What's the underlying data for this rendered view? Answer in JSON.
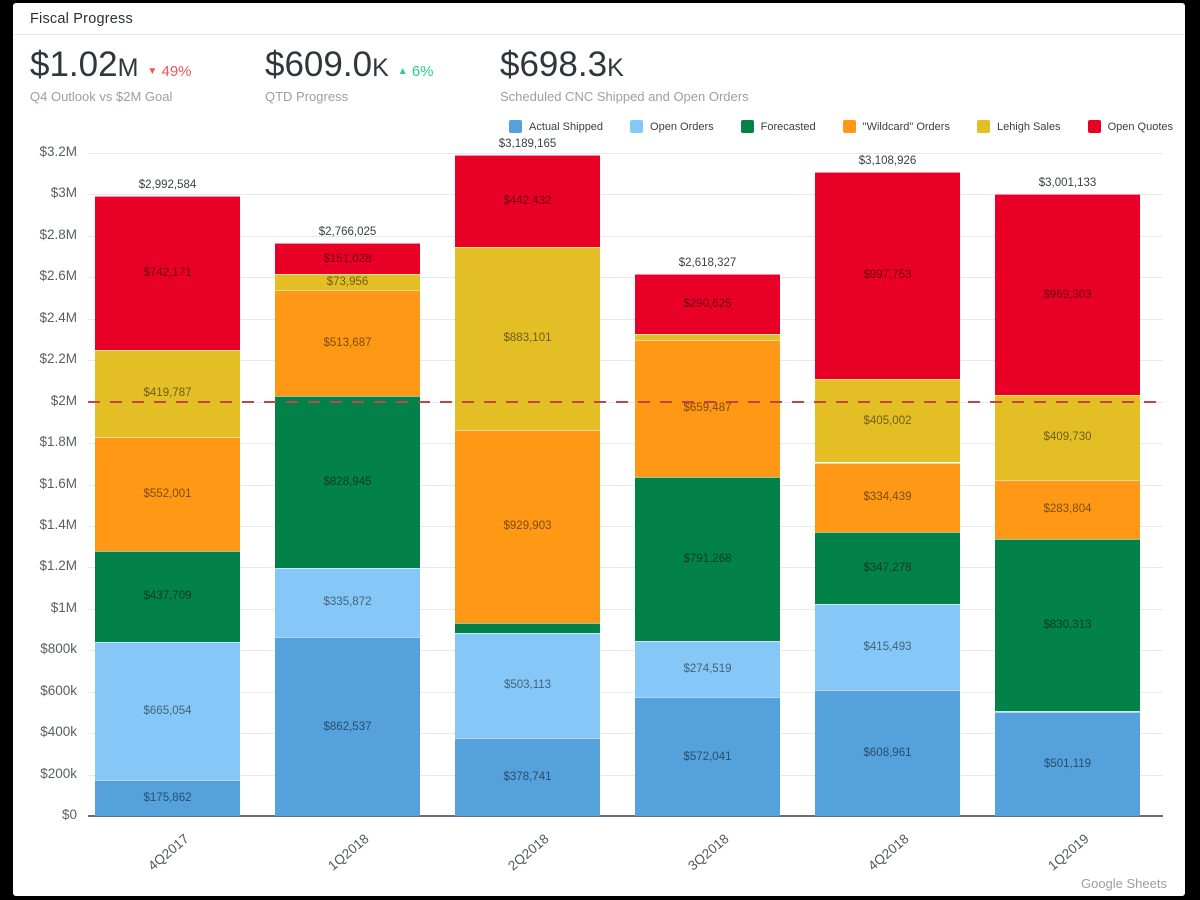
{
  "window": {
    "title": "Fiscal Progress",
    "attribution": "Google Sheets"
  },
  "kpis": [
    {
      "amount": "$1.02",
      "suffix": "M",
      "delta": "49%",
      "delta_direction": "down",
      "delta_color": "#F2545B",
      "sublabel": "Q4 Outlook vs $2M Goal"
    },
    {
      "amount": "$609.0",
      "suffix": "K",
      "delta": "6%",
      "delta_direction": "up",
      "delta_color": "#27CE7E",
      "sublabel": "QTD Progress"
    },
    {
      "amount": "$698.3",
      "suffix": "K",
      "delta": null,
      "delta_direction": null,
      "delta_color": null,
      "sublabel": "Scheduled CNC Shipped and Open Orders"
    }
  ],
  "chart_data": {
    "type": "bar",
    "stacked": true,
    "categories": [
      "4Q2017",
      "1Q2018",
      "2Q2018",
      "3Q2018",
      "4Q2018",
      "1Q2019"
    ],
    "series": [
      {
        "name": "Actual Shipped",
        "color": "#55A1DC",
        "values": [
          175862,
          862537,
          378741,
          572041,
          608961,
          501119
        ]
      },
      {
        "name": "Open Orders",
        "color": "#85C8F8",
        "values": [
          665054,
          335872,
          503113,
          274519,
          415493,
          6864
        ]
      },
      {
        "name": "Forecasted",
        "color": "#028149",
        "values": [
          437709,
          828945,
          51875,
          791268,
          347278,
          830313
        ]
      },
      {
        "name": "\"Wildcard\" Orders",
        "color": "#FF9915",
        "values": [
          552001,
          513687,
          929903,
          659487,
          334439,
          283804
        ]
      },
      {
        "name": "Lehigh Sales",
        "color": "#E3BF25",
        "values": [
          419787,
          73956,
          883101,
          30387,
          405002,
          409730
        ]
      },
      {
        "name": "Open Quotes",
        "color": "#E80026",
        "values": [
          742171,
          151028,
          442432,
          290625,
          997753,
          969303
        ]
      }
    ],
    "totals": [
      2992584,
      2766025,
      3189165,
      2618327,
      3108926,
      3001133
    ],
    "y_ticks": [
      "$0",
      "$200k",
      "$400k",
      "$600k",
      "$800k",
      "$1M",
      "$1.2M",
      "$1.4M",
      "$1.6M",
      "$1.8M",
      "$2M",
      "$2.2M",
      "$2.4M",
      "$2.6M",
      "$2.8M",
      "$3M",
      "$3.2M"
    ],
    "y_max": 3200000,
    "goal_line": {
      "value": 2000000,
      "color": "#C24545"
    },
    "label_min_value": 60000,
    "grid": true,
    "legend_position": "top-right",
    "xlabel": "",
    "ylabel": ""
  }
}
